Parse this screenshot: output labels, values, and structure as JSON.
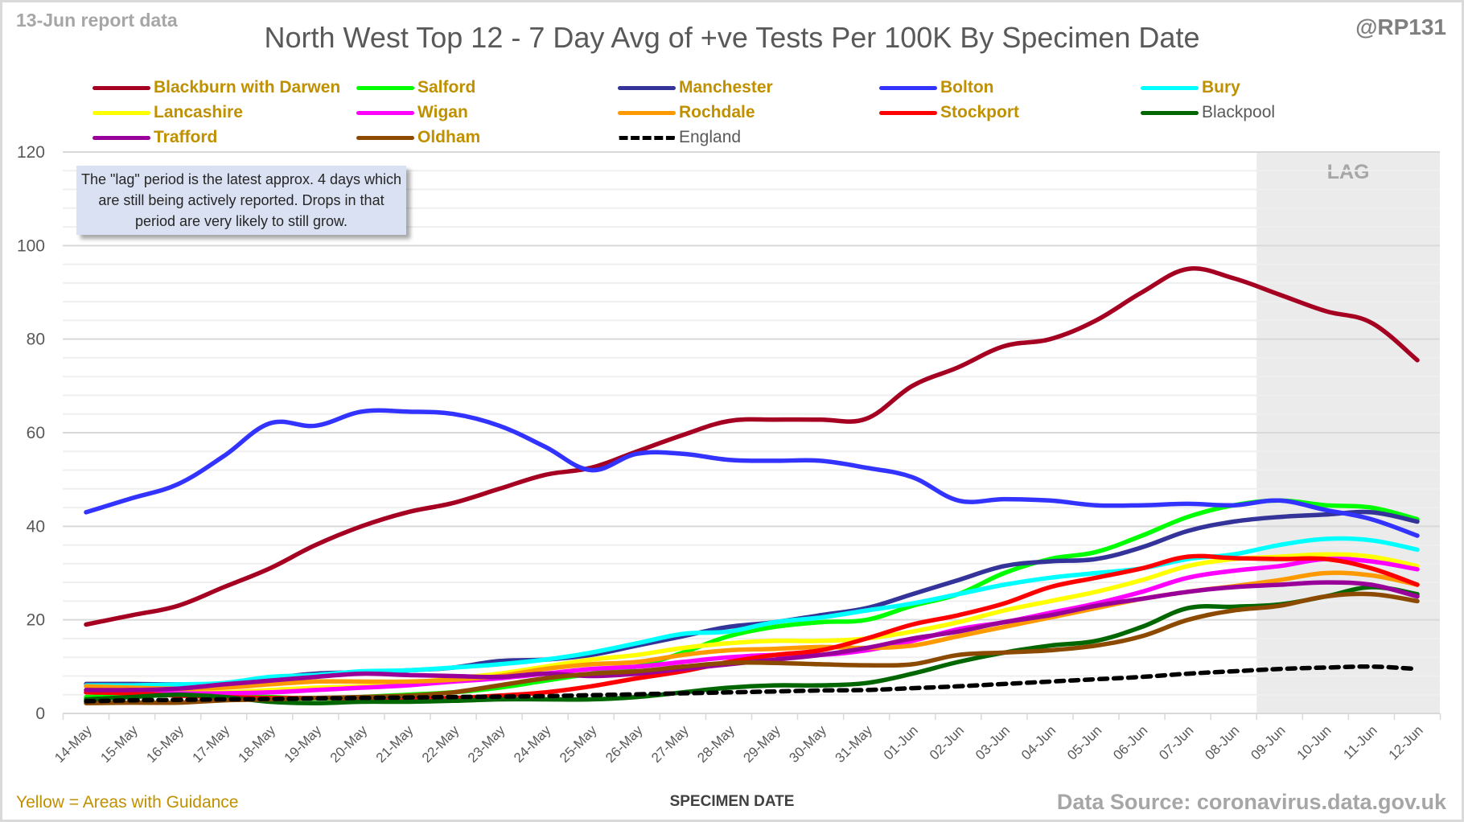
{
  "header": {
    "report_date": "13-Jun report data",
    "handle": "@RP131",
    "title": "North West Top 12 - 7 Day Avg of +ve Tests Per 100K By Specimen Date"
  },
  "annotation": {
    "note": "The \"lag\" period is the latest approx. 4 days which are still being actively reported. Drops in that period are very likely to still grow.",
    "lag_label": "LAG"
  },
  "footer": {
    "guidance_note": "Yellow = Areas with Guidance",
    "x_axis_title": "SPECIMEN DATE",
    "data_source": "Data Source: coronavirus.data.gov.uk"
  },
  "chart_data": {
    "type": "line",
    "title": "North West Top 12 - 7 Day Avg of +ve Tests Per 100K By Specimen Date",
    "xlabel": "SPECIMEN DATE",
    "ylabel": "",
    "ylim": [
      0,
      120
    ],
    "yticks": [
      0,
      20,
      40,
      60,
      80,
      100,
      120
    ],
    "minor_grid_step": 4,
    "grid": true,
    "legend_placement": "top",
    "lag_region": {
      "from": "09-Jun",
      "to": "12-Jun",
      "label": "LAG",
      "color": "#ebebeb"
    },
    "x": [
      "14-May",
      "15-May",
      "16-May",
      "17-May",
      "18-May",
      "19-May",
      "20-May",
      "21-May",
      "22-May",
      "23-May",
      "24-May",
      "25-May",
      "26-May",
      "27-May",
      "28-May",
      "29-May",
      "30-May",
      "31-May",
      "01-Jun",
      "02-Jun",
      "03-Jun",
      "04-Jun",
      "05-Jun",
      "06-Jun",
      "07-Jun",
      "08-Jun",
      "09-Jun",
      "10-Jun",
      "11-Jun",
      "12-Jun"
    ],
    "series": [
      {
        "name": "Blackburn with Darwen",
        "color": "#a50021",
        "guidance": true,
        "dashed": false,
        "values": [
          19,
          21,
          23,
          27,
          31,
          36,
          40,
          43,
          45,
          48,
          51,
          52.5,
          56,
          59.5,
          62.5,
          62.8,
          62.8,
          63,
          70,
          74,
          78.5,
          80,
          84,
          90,
          95,
          93,
          89.5,
          86,
          83.5,
          75.5
        ]
      },
      {
        "name": "Salford",
        "color": "#00ff00",
        "guidance": true,
        "dashed": false,
        "values": [
          3.5,
          3.8,
          4,
          3.8,
          3.5,
          3.2,
          3.5,
          4,
          4.5,
          5.5,
          7,
          8.5,
          10,
          13,
          16.5,
          18.5,
          19.5,
          20,
          23,
          25.5,
          30,
          33,
          34.5,
          38,
          42,
          44.5,
          45.5,
          44.5,
          44,
          41.5
        ]
      },
      {
        "name": "Manchester",
        "color": "#333399",
        "guidance": true,
        "dashed": false,
        "values": [
          6.3,
          6.3,
          6.2,
          6.3,
          7.5,
          8.5,
          8.8,
          9.2,
          9.8,
          11.2,
          11.5,
          12.5,
          14.5,
          16.5,
          18.5,
          19.5,
          21,
          22.5,
          25.5,
          28.5,
          31.5,
          32.5,
          33,
          35.5,
          39,
          41,
          42,
          42.5,
          43,
          41
        ]
      },
      {
        "name": "Bolton",
        "color": "#3333ff",
        "guidance": true,
        "dashed": false,
        "values": [
          43,
          46,
          49,
          55,
          62,
          61.5,
          64.5,
          64.5,
          64,
          61.5,
          57,
          52,
          55.5,
          55.5,
          54.2,
          54,
          54,
          52.5,
          50.5,
          45.5,
          45.8,
          45.5,
          44.5,
          44.5,
          44.8,
          44.5,
          45.5,
          43.5,
          41.5,
          38
        ]
      },
      {
        "name": "Bury",
        "color": "#00ffff",
        "guidance": true,
        "dashed": false,
        "values": [
          6,
          6,
          6.2,
          6.5,
          7.8,
          8.2,
          9,
          9.2,
          9.8,
          10.5,
          11.5,
          13,
          15,
          17,
          17.5,
          19.5,
          20.5,
          22,
          23.5,
          25.5,
          27.5,
          29,
          30,
          31,
          33,
          34,
          36,
          37.3,
          37,
          35
        ]
      },
      {
        "name": "Lancashire",
        "color": "#ffff00",
        "guidance": true,
        "dashed": false,
        "values": [
          5,
          5,
          4.8,
          4.5,
          5,
          5.5,
          5.8,
          6.5,
          7.5,
          8.5,
          10,
          11.5,
          12.5,
          14,
          15,
          15.5,
          15.5,
          16,
          17.5,
          19.5,
          22,
          24,
          26,
          28.5,
          31.5,
          33,
          33.5,
          34,
          33.5,
          31.5
        ]
      },
      {
        "name": "Wigan",
        "color": "#ff00ff",
        "guidance": true,
        "dashed": false,
        "values": [
          4.5,
          4.5,
          4.3,
          4.3,
          4.5,
          5,
          5.5,
          6,
          6.8,
          7.5,
          8.5,
          9.5,
          10,
          11,
          12,
          12.5,
          12.5,
          13.5,
          15.5,
          18,
          19.5,
          21.5,
          23.5,
          26,
          29,
          30.5,
          31.5,
          33,
          32.5,
          30.8
        ]
      },
      {
        "name": "Rochdale",
        "color": "#ff9900",
        "guidance": true,
        "dashed": false,
        "values": [
          5.8,
          5.5,
          5.3,
          5.5,
          6.2,
          6.8,
          6.8,
          6.8,
          7.2,
          8,
          9.5,
          10.5,
          11,
          12.5,
          13.5,
          13.8,
          14.2,
          14,
          14.5,
          16.5,
          18.5,
          20.5,
          22.5,
          24.5,
          26,
          27.2,
          28.5,
          30,
          29.5,
          27.5
        ]
      },
      {
        "name": "Stockport",
        "color": "#ff0000",
        "guidance": true,
        "dashed": false,
        "values": [
          4.5,
          4.3,
          3.8,
          3.5,
          3.3,
          3.3,
          3.3,
          3.2,
          3.3,
          3.8,
          4.5,
          5.8,
          7.5,
          9,
          11,
          12.5,
          13.5,
          16,
          19,
          21,
          23.5,
          27,
          29,
          31,
          33.5,
          33.2,
          33,
          33,
          31,
          27.5
        ]
      },
      {
        "name": "Blackpool",
        "color": "#006600",
        "guidance": false,
        "dashed": false,
        "values": [
          3,
          3.5,
          4,
          3.5,
          2.5,
          2.2,
          2.5,
          2.5,
          2.7,
          3,
          3,
          3,
          3.5,
          4.5,
          5.5,
          6,
          6,
          6.5,
          8.5,
          11,
          13,
          14.5,
          15.5,
          18.5,
          22.5,
          22.8,
          23.3,
          25,
          27,
          25.5
        ]
      },
      {
        "name": "Trafford",
        "color": "#990099",
        "guidance": true,
        "dashed": false,
        "values": [
          5,
          5,
          5.3,
          6.2,
          7,
          7.8,
          8.5,
          8.2,
          8,
          7.8,
          8.5,
          8,
          8.5,
          9.5,
          10.5,
          11.5,
          12.5,
          14,
          16,
          17.5,
          19.5,
          21,
          23,
          24.5,
          26,
          27,
          27.5,
          28,
          27.5,
          25
        ]
      },
      {
        "name": "Oldham",
        "color": "#8b4a00",
        "guidance": true,
        "dashed": false,
        "values": [
          2.2,
          2.3,
          2.3,
          2.8,
          3,
          3.3,
          3.5,
          3.8,
          4.5,
          6,
          7.5,
          8.5,
          9,
          10,
          10.8,
          10.8,
          10.5,
          10.3,
          10.5,
          12.5,
          13,
          13.5,
          14.5,
          16.5,
          20,
          22,
          23,
          25,
          25.5,
          24
        ]
      },
      {
        "name": "England",
        "color": "#000000",
        "guidance": false,
        "dashed": true,
        "values": [
          2.6,
          2.8,
          2.9,
          3,
          3.1,
          3.2,
          3.3,
          3.4,
          3.5,
          3.6,
          3.7,
          3.9,
          4.1,
          4.3,
          4.5,
          4.7,
          4.9,
          5,
          5.4,
          5.8,
          6.3,
          6.8,
          7.3,
          7.8,
          8.5,
          9,
          9.5,
          9.8,
          10,
          9.5
        ]
      }
    ]
  }
}
